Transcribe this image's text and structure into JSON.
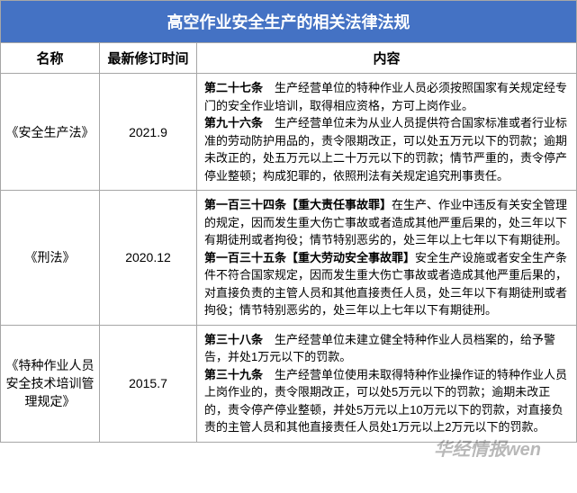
{
  "title": "高空作业安全生产的相关法律法规",
  "columns": {
    "name": "名称",
    "date": "最新修订时间",
    "content": "内容"
  },
  "colors": {
    "title_bg": "#4472c4",
    "title_text": "#ffffff",
    "border": "#a6a6a6",
    "body_bg": "#ffffff",
    "text": "#000000"
  },
  "font": {
    "title_size": 18,
    "header_size": 15,
    "body_size": 13,
    "family": "Microsoft YaHei"
  },
  "col_widths": {
    "name": 110,
    "date": 108
  },
  "rows": [
    {
      "name": "《安全生产法》",
      "date": "2021.9",
      "articles": [
        {
          "num": "第二十七条",
          "text": "　生产经营单位的特种作业人员必须按照国家有关规定经专门的安全作业培训，取得相应资格，方可上岗作业。"
        },
        {
          "num": "第九十六条",
          "text": "　生产经营单位未为从业人员提供符合国家标准或者行业标准的劳动防护用品的，责令限期改正，可以处五万元以下的罚款；逾期未改正的，处五万元以上二十万元以下的罚款；情节严重的，责令停产停业整顿；构成犯罪的，依照刑法有关规定追究刑事责任。"
        }
      ]
    },
    {
      "name": "《刑法》",
      "date": "2020.12",
      "articles": [
        {
          "num": "第一百三十四条",
          "label": "【重大责任事故罪】",
          "text": "在生产、作业中违反有关安全管理的规定，因而发生重大伤亡事故或者造成其他严重后果的，处三年以下有期徒刑或者拘役；情节特别恶劣的，处三年以上七年以下有期徒刑。"
        },
        {
          "num": "第一百三十五条",
          "label": "【重大劳动安全事故罪】",
          "text": "安全生产设施或者安全生产条件不符合国家规定，因而发生重大伤亡事故或者造成其他严重后果的，对直接负责的主管人员和其他直接责任人员，处三年以下有期徒刑或者拘役；情节特别恶劣的，处三年以上七年以下有期徒刑。"
        }
      ]
    },
    {
      "name": "《特种作业人员安全技术培训管理规定》",
      "date": "2015.7",
      "articles": [
        {
          "num": "第三十八条",
          "text": "　生产经营单位未建立健全特种作业人员档案的，给予警告，并处1万元以下的罚款。"
        },
        {
          "num": "第三十九条",
          "text": "　生产经营单位使用未取得特种作业操作证的特种作业人员上岗作业的，责令限期改正，可以处5万元以下的罚款；逾期未改正的，责令停产停业整顿，并处5万元以上10万元以下的罚款，对直接负责的主管人员和其他直接责任人员处1万元以上2万元以下的罚款。"
        }
      ]
    }
  ],
  "watermark": "华经情报wen"
}
